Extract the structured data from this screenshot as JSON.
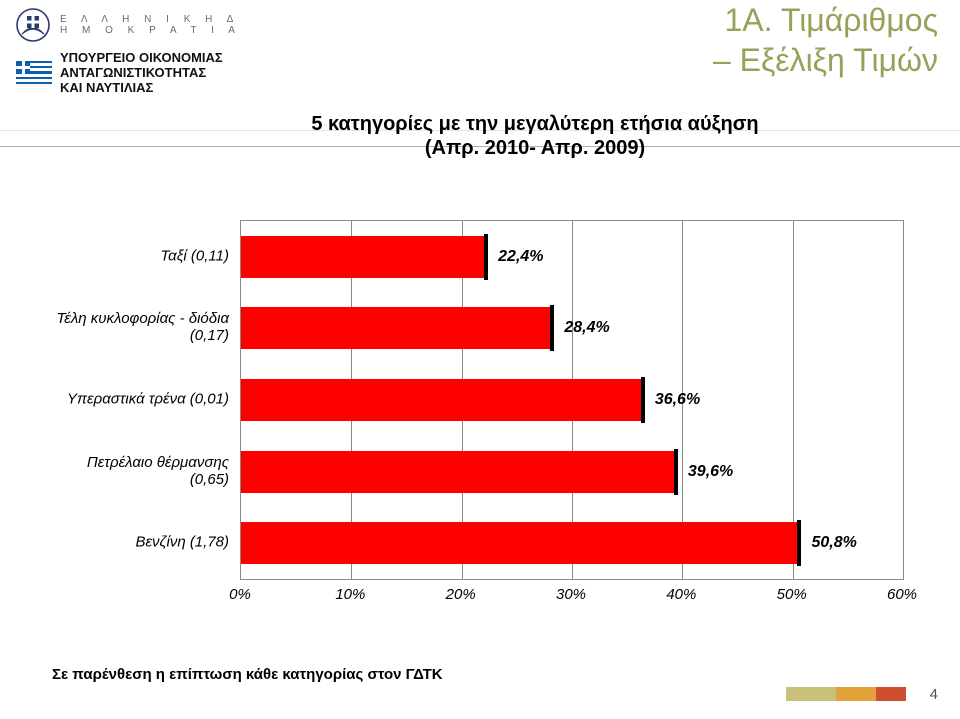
{
  "header": {
    "country_letters": "Ε Λ Λ Η Ν Ι Κ Η  Δ Η Μ Ο Κ Ρ Α Τ Ι Α",
    "ministry_line1": "ΥΠΟΥΡΓΕΙΟ ΟΙΚΟΝΟΜΙΑΣ",
    "ministry_line2": "ΑΝΤΑΓΩΝΙΣΤΙΚΟΤΗΤΑΣ",
    "ministry_line3": "ΚΑΙ ΝΑΥΤΙΛΙΑΣ"
  },
  "slide_title_color": "#9aa05a",
  "slide_title_line1": "1Α. Τιμάριθμος",
  "slide_title_line2": "– Εξέλιξη Τιμών",
  "chart_title_line1": "5 κατηγορίες με την μεγαλύτερη ετήσια αύξηση",
  "chart_title_line2": "(Απρ. 2010- Απρ. 2009)",
  "chart": {
    "type": "bar-horizontal",
    "xlim": [
      0,
      60
    ],
    "xtick_step": 10,
    "xtick_labels": [
      "0%",
      "10%",
      "20%",
      "30%",
      "40%",
      "50%",
      "60%"
    ],
    "grid_color": "#8a8a8a",
    "plot_bg": "#ffffff",
    "bar_color": "#ff0000",
    "bar_cap_color": "#000000",
    "label_fontsize": 15,
    "value_fontsize": 16,
    "categories": [
      {
        "label_l1": "Ταξί (0,11)",
        "label_l2": "",
        "value": 22.4,
        "value_label": "22,4%"
      },
      {
        "label_l1": "Τέλη κυκλοφορίας - διόδια",
        "label_l2": "(0,17)",
        "value": 28.4,
        "value_label": "28,4%"
      },
      {
        "label_l1": "Υπεραστικά τρένα (0,01)",
        "label_l2": "",
        "value": 36.6,
        "value_label": "36,6%"
      },
      {
        "label_l1": "Πετρέλαιο θέρμανσης (0,65)",
        "label_l2": "",
        "value": 39.6,
        "value_label": "39,6%"
      },
      {
        "label_l1": "Βενζίνη (1,78)",
        "label_l2": "",
        "value": 50.8,
        "value_label": "50,8%"
      }
    ]
  },
  "footnote": "Σε παρένθεση η επίπτωση κάθε κατηγορίας στον ΓΔΤΚ",
  "page_number": "4",
  "deco_colors": [
    "#c9c07a",
    "#e3a13a",
    "#cf4e2e"
  ]
}
